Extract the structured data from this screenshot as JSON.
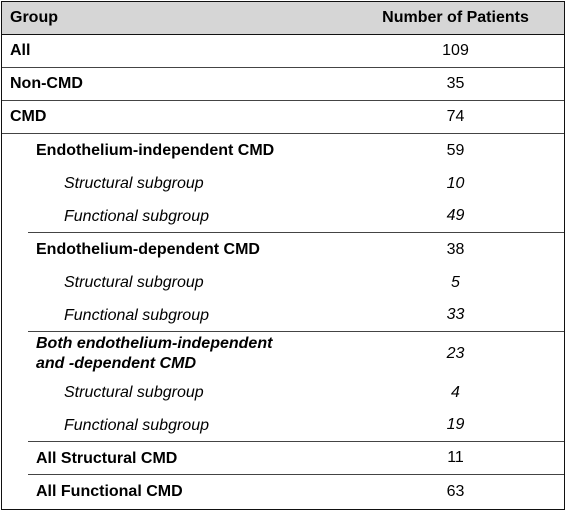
{
  "header": {
    "group_label": "Group",
    "count_label": "Number of Patients"
  },
  "rows": [
    {
      "label": "All",
      "value": "109"
    },
    {
      "label": "Non-CMD",
      "value": "35"
    },
    {
      "label": "CMD",
      "value": "74"
    },
    {
      "label": "Endothelium-independent CMD",
      "value": "59"
    },
    {
      "label": "Structural subgroup",
      "value": "10"
    },
    {
      "label": "Functional subgroup",
      "value": "49"
    },
    {
      "label": "Endothelium-dependent CMD",
      "value": "38"
    },
    {
      "label": "Structural subgroup",
      "value": "5"
    },
    {
      "label": "Functional subgroup",
      "value": "33"
    },
    {
      "label": "Both endothelium-independent\nand -dependent CMD",
      "value": "23"
    },
    {
      "label": "Structural subgroup",
      "value": "4"
    },
    {
      "label": "Functional subgroup",
      "value": "19"
    },
    {
      "label": "All Structural CMD",
      "value": "11"
    },
    {
      "label": "All Functional CMD",
      "value": "63"
    }
  ]
}
